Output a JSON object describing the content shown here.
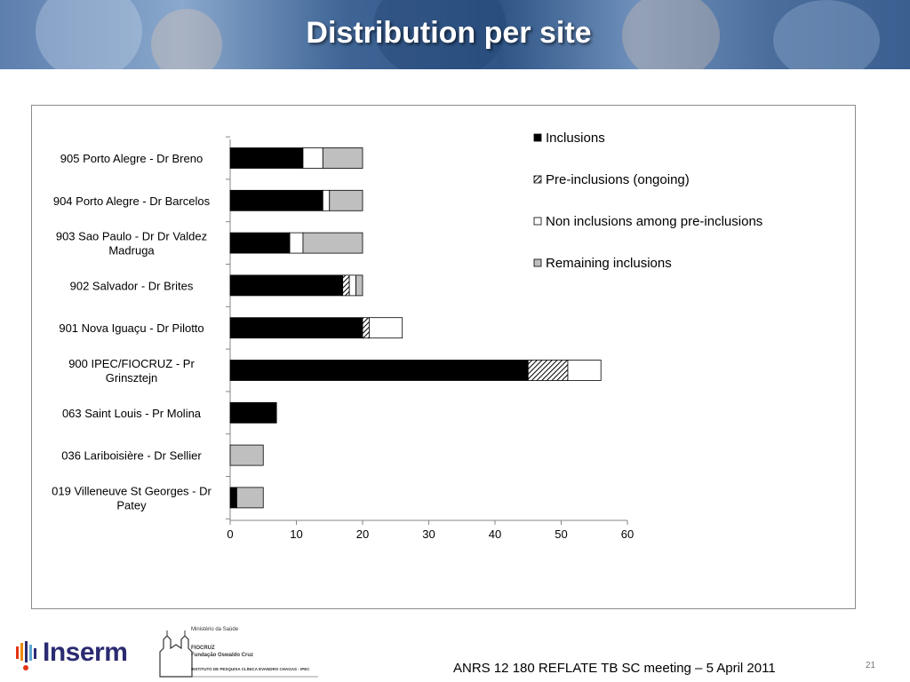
{
  "slide": {
    "title": "Distribution per site",
    "footer": "ANRS 12 180 REFLATE TB SC meeting – 5 April 2011",
    "page_number": "21"
  },
  "logos": {
    "inserm": "Inserm",
    "fiocruz_ministry": "Ministério da Saúde",
    "fiocruz_name1": "FIOCRUZ",
    "fiocruz_name2": "Fundação Oswaldo Cruz",
    "fiocruz_institute": "INSTITUTO DE PESQUISA CLÍNICA EVANDRO CHAGAS - IPEC"
  },
  "colors": {
    "inclusions": "#000000",
    "pre_inclusions": "#ffffff",
    "non_inclusions": "#ffffff",
    "remaining": "#bfbfbf",
    "banner": "#3f6596"
  },
  "chart_data": {
    "type": "bar",
    "orientation": "horizontal",
    "stacked": true,
    "title": "",
    "xlabel": "",
    "ylabel": "",
    "xlim": [
      0,
      60
    ],
    "xticks": [
      0,
      10,
      20,
      30,
      40,
      50,
      60
    ],
    "grid": false,
    "legend_position": "top-right",
    "categories": [
      "905 Porto Alegre - Dr Breno",
      "904 Porto Alegre - Dr Barcelos",
      "903 Sao Paulo - Dr Dr Valdez Madruga",
      "902 Salvador - Dr Brites",
      "901 Nova Iguaçu - Dr Pilotto",
      "900 IPEC/FIOCRUZ - Pr Grinsztejn",
      "063 Saint Louis - Pr Molina",
      "036 Lariboisière - Dr Sellier",
      "019 Villeneuve St Georges - Dr Patey"
    ],
    "series": [
      {
        "name": "Inclusions",
        "pattern": "solid-black",
        "values": [
          11,
          14,
          9,
          17,
          20,
          45,
          7,
          0,
          1
        ]
      },
      {
        "name": "Pre-inclusions (ongoing)",
        "pattern": "hatched",
        "values": [
          0,
          0,
          0,
          1,
          1,
          6,
          0,
          0,
          0
        ]
      },
      {
        "name": "Non inclusions among pre-inclusions",
        "pattern": "white",
        "values": [
          3,
          1,
          2,
          1,
          5,
          5,
          0,
          0,
          0
        ]
      },
      {
        "name": "Remaining inclusions",
        "pattern": "grey",
        "values": [
          6,
          5,
          9,
          1,
          0,
          0,
          0,
          5,
          4
        ]
      }
    ]
  }
}
